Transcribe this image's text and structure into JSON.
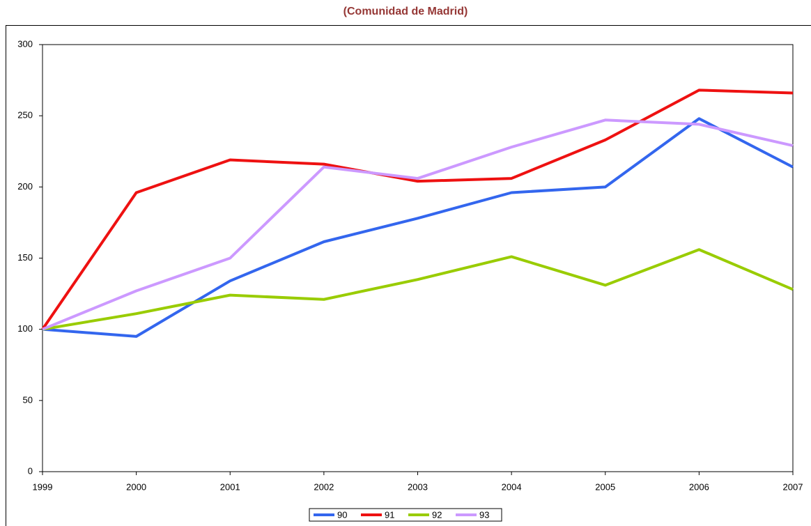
{
  "chart_data": {
    "type": "line",
    "title": "(Comunidad de Madrid)",
    "categories": [
      "1999",
      "2000",
      "2001",
      "2002",
      "2003",
      "2004",
      "2005",
      "2006",
      "2007"
    ],
    "series": [
      {
        "name": "90",
        "color": "#3366ee",
        "values": [
          100,
          95,
          134,
          161.5,
          178,
          196,
          200,
          248,
          214
        ]
      },
      {
        "name": "91",
        "color": "#ee1111",
        "values": [
          100,
          196,
          219,
          216,
          204,
          206,
          233,
          268,
          266
        ]
      },
      {
        "name": "92",
        "color": "#99cc00",
        "values": [
          100,
          111,
          124,
          121,
          135,
          151,
          131,
          156,
          128
        ]
      },
      {
        "name": "93",
        "color": "#cc99ff",
        "values": [
          100,
          127,
          150,
          214,
          206,
          228,
          247,
          244,
          229
        ]
      }
    ],
    "ylim": [
      0,
      300
    ],
    "yticks": [
      0,
      50,
      100,
      150,
      200,
      250,
      300
    ],
    "grid": false,
    "legend": "bottom"
  }
}
